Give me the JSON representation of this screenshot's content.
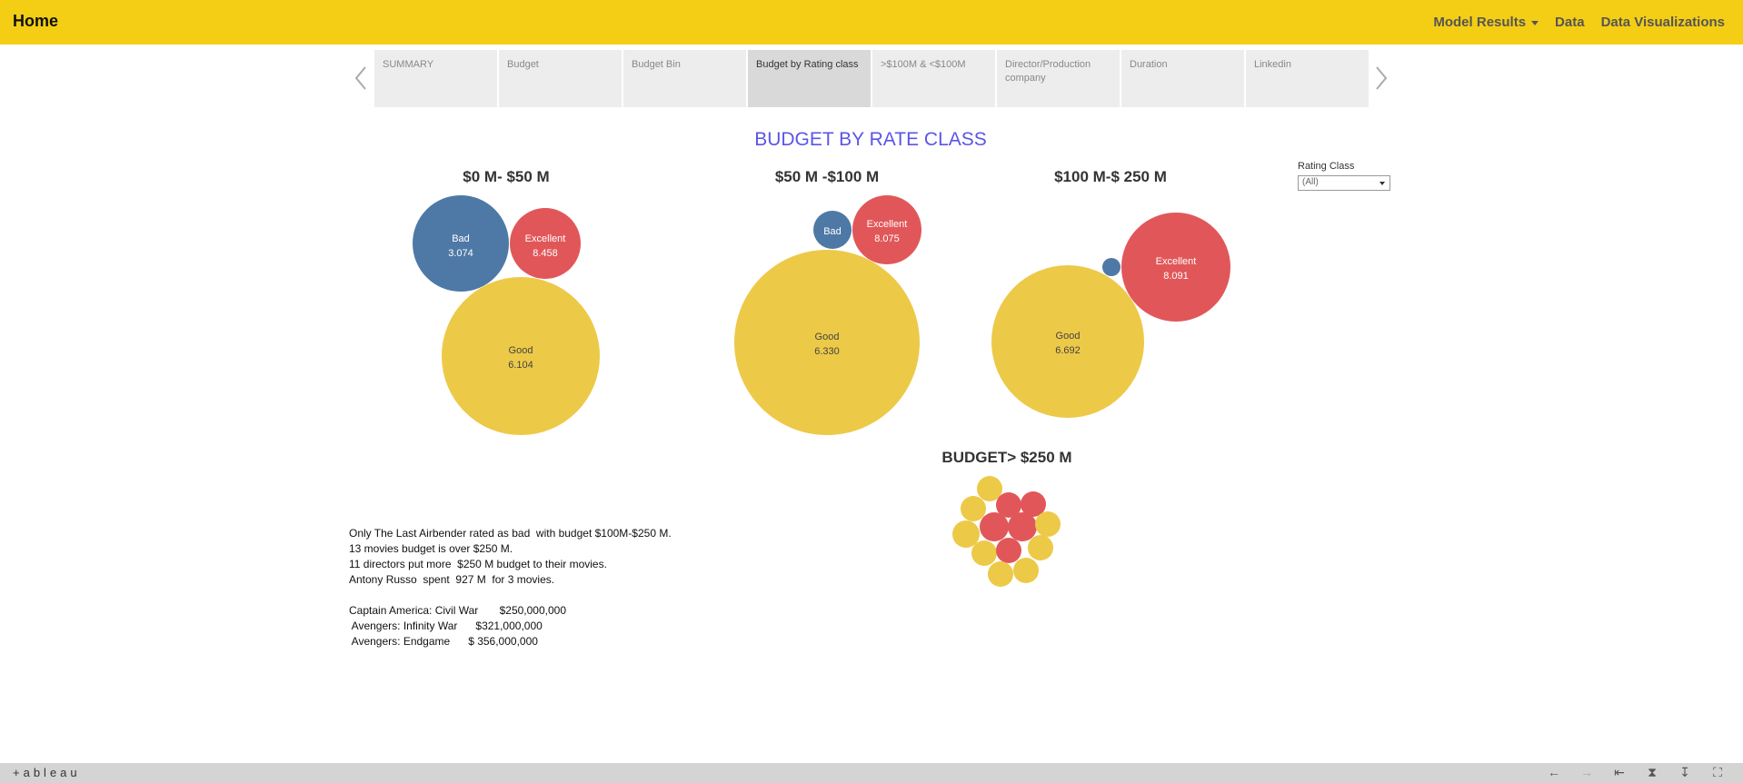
{
  "navbar": {
    "brand": "Home",
    "links": [
      "Model Results",
      "Data",
      "Data Visualizations"
    ]
  },
  "tabs": [
    "SUMMARY",
    "Budget",
    "Budget Bin",
    "Budget by Rating class",
    ">$100M & <$100M",
    "Director/Production company",
    "Duration",
    "Linkedin"
  ],
  "active_tab": "Budget by Rating class",
  "title": "BUDGET BY RATE CLASS",
  "filter": {
    "label": "Rating Class",
    "value": "(All)"
  },
  "notes": [
    "Only The Last Airbender rated as bad  with budget $100M-$250 M.",
    "13 movies budget is over $250 M.",
    "11 directors put more  $250 M budget to their movies.",
    "Antony Russo  spent  927 M  for 3 movies.",
    "",
    "Captain America: Civil War       $250,000,000",
    " Avengers: Infinity War      $321,000,000",
    " Avengers: Endgame      $ 356,000,000"
  ],
  "footer": {
    "logo": "+ableau",
    "icons": [
      "undo-icon",
      "redo-icon",
      "revert-icon",
      "share-icon",
      "download-icon",
      "fullscreen-icon"
    ]
  },
  "colors": {
    "bad": "#4e79a7",
    "excellent": "#e15759",
    "good": "#edc948",
    "navbar": "#f4ce14",
    "title": "#5a55e8"
  },
  "chart_data": [
    {
      "type": "bubble",
      "title": "$0 M- $50 M",
      "size_measure": "average rating",
      "points": [
        {
          "class": "Bad",
          "value": 3.074
        },
        {
          "class": "Excellent",
          "value": 8.458
        },
        {
          "class": "Good",
          "value": 6.104
        }
      ]
    },
    {
      "type": "bubble",
      "title": "$50 M -$100 M",
      "points": [
        {
          "class": "Bad",
          "value": null
        },
        {
          "class": "Excellent",
          "value": 8.075
        },
        {
          "class": "Good",
          "value": 6.33
        }
      ]
    },
    {
      "type": "bubble",
      "title": "$100 M-$ 250 M",
      "points": [
        {
          "class": "Bad",
          "value": null
        },
        {
          "class": "Excellent",
          "value": 8.091
        },
        {
          "class": "Good",
          "value": 6.692
        }
      ]
    },
    {
      "type": "bubble",
      "title": "BUDGET> $250 M",
      "points": [
        {
          "class": "Good"
        },
        {
          "class": "Excellent"
        },
        {
          "class": "Excellent"
        },
        {
          "class": "Good"
        },
        {
          "class": "Excellent"
        },
        {
          "class": "Excellent"
        },
        {
          "class": "Good"
        },
        {
          "class": "Good"
        },
        {
          "class": "Good"
        },
        {
          "class": "Excellent"
        },
        {
          "class": "Good"
        },
        {
          "class": "Good"
        },
        {
          "class": "Good"
        }
      ]
    }
  ]
}
